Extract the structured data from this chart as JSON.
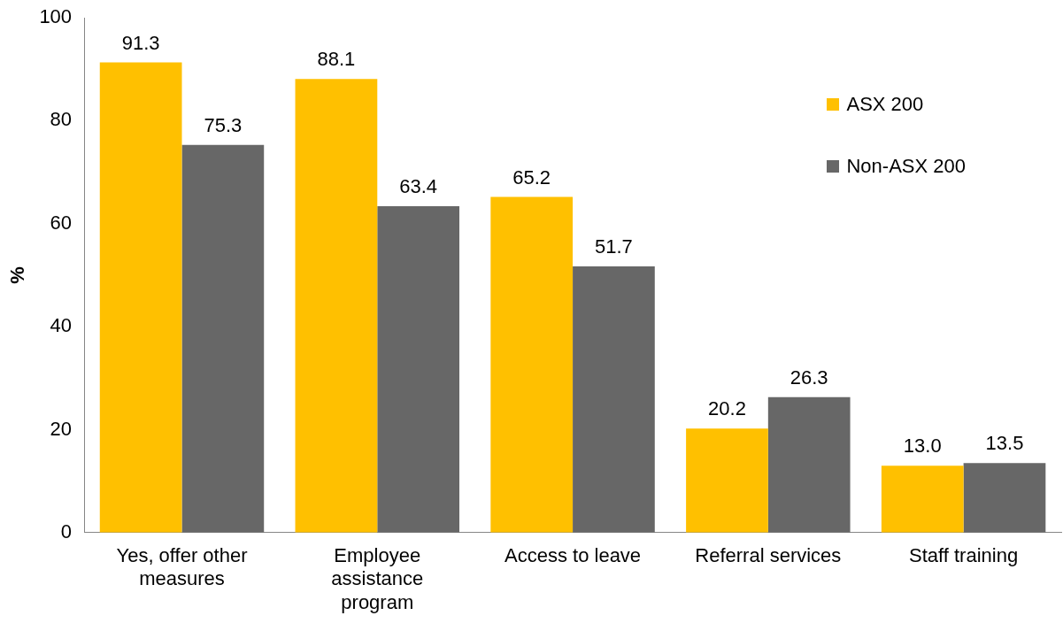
{
  "chart_data": {
    "type": "bar",
    "ylabel": "%",
    "categories": [
      "Yes, offer other measures",
      "Employee assistance program",
      "Access to leave",
      "Referral services",
      "Staff training"
    ],
    "series": [
      {
        "name": "ASX 200",
        "color": "#ffc000",
        "values": [
          91.3,
          88.1,
          65.2,
          20.2,
          13.0
        ],
        "value_labels": [
          "91.3",
          "88.1",
          "65.2",
          "20.2",
          "13.0"
        ]
      },
      {
        "name": "Non-ASX 200",
        "color": "#676767",
        "values": [
          75.3,
          63.4,
          51.7,
          26.3,
          13.5
        ],
        "value_labels": [
          "75.3",
          "63.4",
          "51.7",
          "26.3",
          "13.5"
        ]
      }
    ],
    "ylim": [
      0,
      100
    ],
    "yticks": [
      0,
      20,
      40,
      60,
      80,
      100
    ],
    "grid": false,
    "legend": "top right"
  }
}
